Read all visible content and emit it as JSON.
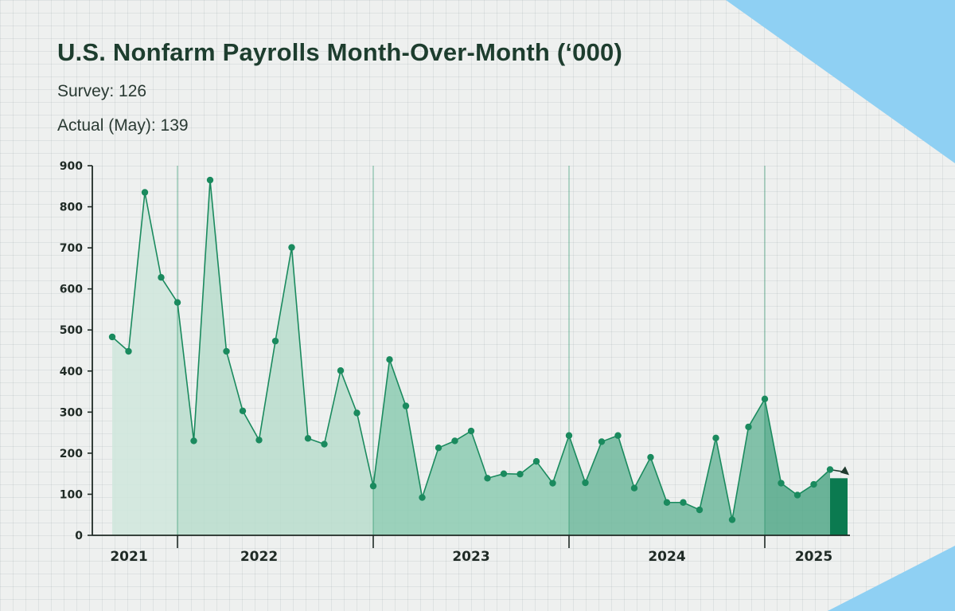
{
  "header": {
    "title": "U.S. Nonfarm Payrolls Month-Over-Month (‘000)",
    "survey": "Survey: 126",
    "actual": "Actual (May): 139"
  },
  "colors": {
    "line": "#1a8a5e",
    "fill_2021": "#cfe6dc",
    "fill_2022": "#b9ddcd",
    "fill_2023": "#8ccbb1",
    "fill_2024": "#6fb89c",
    "fill_2025": "#52a888",
    "highlight_bar": "#0b7a50",
    "accent_corner": "#8fd0f3"
  },
  "chart_data": {
    "type": "area",
    "title": "U.S. Nonfarm Payrolls Month-Over-Month (‘000)",
    "xlabel": "",
    "ylabel": "",
    "ylim": [
      0,
      900
    ],
    "yticks": [
      0,
      100,
      200,
      300,
      400,
      500,
      600,
      700,
      800,
      900
    ],
    "year_labels": [
      "2021",
      "2022",
      "2023",
      "2024",
      "2025"
    ],
    "series": [
      {
        "name": "Nonfarm Payrolls MoM",
        "values": [
          483,
          448,
          835,
          628,
          567,
          230,
          865,
          448,
          303,
          232,
          473,
          701,
          236,
          222,
          401,
          298,
          120,
          428,
          315,
          92,
          213,
          230,
          254,
          139,
          150,
          149,
          180,
          127,
          243,
          128,
          228,
          243,
          115,
          190,
          80,
          80,
          62,
          237,
          38,
          264,
          332,
          127,
          98,
          124,
          160
        ]
      }
    ],
    "highlight": {
      "label": "Actual (May)",
      "value": 139
    }
  }
}
